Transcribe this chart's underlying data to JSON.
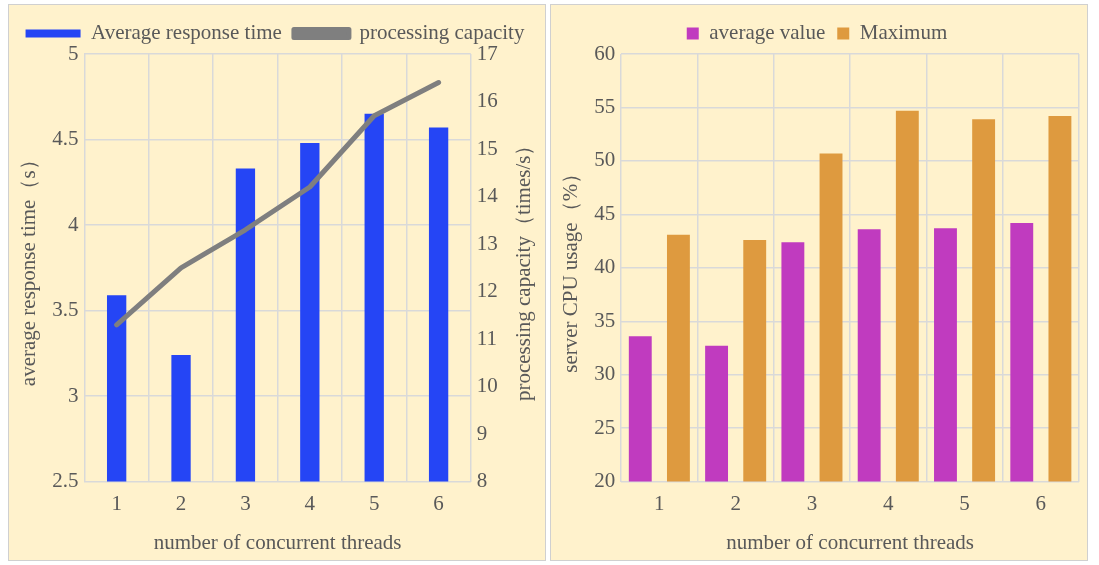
{
  "chart_data": [
    {
      "type": "bar",
      "categories": [
        "1",
        "2",
        "3",
        "4",
        "5",
        "6"
      ],
      "series": [
        {
          "name": "Average response time",
          "type": "bar",
          "color": "#2545f5",
          "values": [
            3.59,
            3.24,
            4.33,
            4.48,
            4.65,
            4.57
          ]
        },
        {
          "name": "processing capacity",
          "type": "line",
          "axis": "y2",
          "color": "#7f7f7f",
          "values": [
            11.3,
            12.5,
            13.3,
            14.2,
            15.7,
            16.4
          ]
        }
      ],
      "xlabel": "number of concurrent threads",
      "ylabel": "average response time（s）",
      "y2label": "processing capacity（times/s）",
      "ylim": [
        2.5,
        5
      ],
      "yticks": [
        2.5,
        3,
        3.5,
        4,
        4.5,
        5
      ],
      "y2lim": [
        8,
        17
      ],
      "y2ticks": [
        8,
        9,
        10,
        11,
        12,
        13,
        14,
        15,
        16,
        17
      ],
      "grid": true,
      "legend": "top",
      "marker": "none"
    },
    {
      "type": "bar",
      "categories": [
        "1",
        "2",
        "3",
        "4",
        "5",
        "6"
      ],
      "series": [
        {
          "name": "average value",
          "color": "#c03bbf",
          "values": [
            33.6,
            32.7,
            42.4,
            43.6,
            43.7,
            44.2
          ]
        },
        {
          "name": "Maximum",
          "color": "#de9a3f",
          "values": [
            43.1,
            42.6,
            50.7,
            54.7,
            53.9,
            54.2
          ]
        }
      ],
      "xlabel": "number of concurrent threads",
      "ylabel": "server CPU usage（%）",
      "ylim": [
        20,
        60
      ],
      "yticks": [
        20,
        25,
        30,
        35,
        40,
        45,
        50,
        55,
        60
      ],
      "grid": true,
      "legend": "top"
    }
  ]
}
